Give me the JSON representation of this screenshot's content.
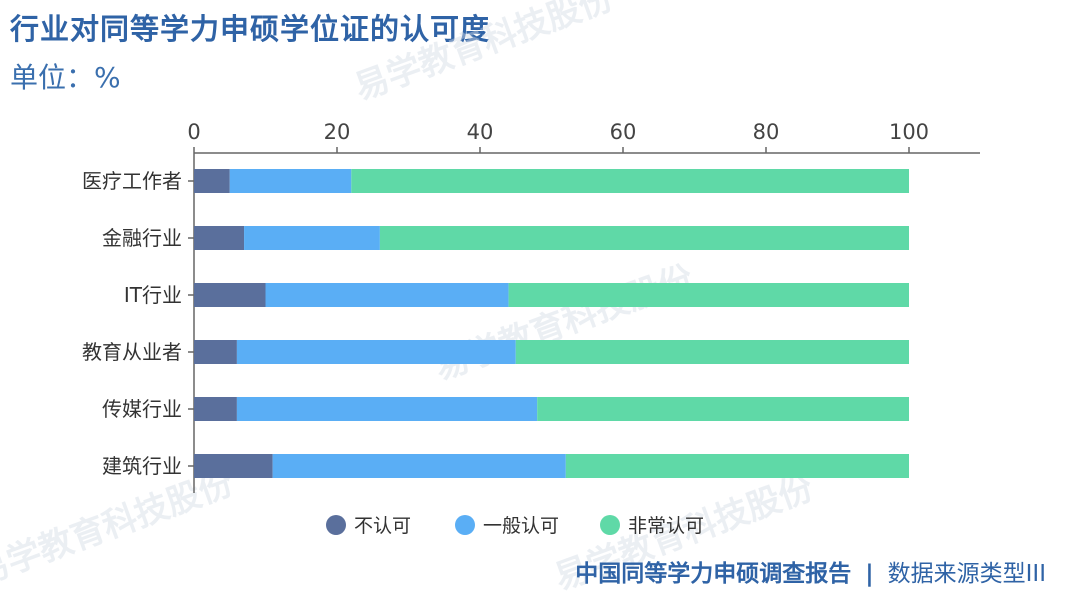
{
  "title": "行业对同等学力申硕学位证的认可度",
  "unit_label": "单位：%",
  "footer": {
    "report": "中国同等学力申硕调查报告",
    "separator": "|",
    "source": "数据来源类型III"
  },
  "watermark": "易学教育科技股份",
  "chart_data": {
    "type": "bar",
    "orientation": "horizontal",
    "stacked": true,
    "title": "行业对同等学力申硕学位证的认可度",
    "unit": "单位：%",
    "categories": [
      "医疗工作者",
      "金融行业",
      "IT行业",
      "教育从业者",
      "传媒行业",
      "建筑行业"
    ],
    "series": [
      {
        "name": "不认可",
        "color": "#5a6f9c",
        "values": [
          5,
          7,
          10,
          6,
          6,
          11
        ]
      },
      {
        "name": "一般认可",
        "color": "#5aaef5",
        "values": [
          17,
          19,
          34,
          39,
          42,
          41
        ]
      },
      {
        "name": "非常认可",
        "color": "#5fd9a7",
        "values": [
          78,
          74,
          56,
          55,
          52,
          48
        ]
      }
    ],
    "xaxis": {
      "position": "top",
      "ticks": [
        0,
        20,
        40,
        60,
        80,
        100
      ],
      "range": [
        0,
        110
      ]
    },
    "grid": false,
    "legend": "bottom-center"
  }
}
